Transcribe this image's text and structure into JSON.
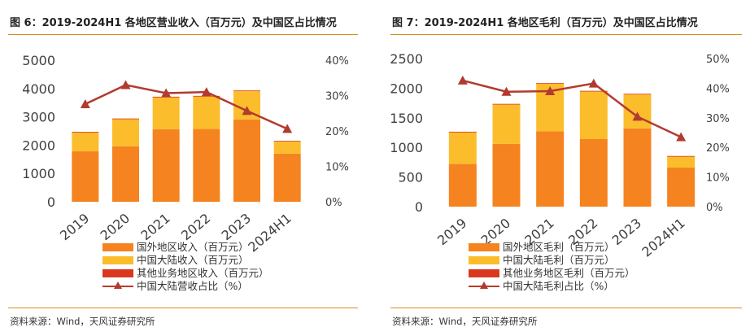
{
  "colors": {
    "overseas": "#f5831f",
    "mainland": "#fbbd2c",
    "other": "#d9381e",
    "ratio_line": "#b23a2e",
    "accent_rule": "#e08a1e"
  },
  "charts": [
    {
      "title": "图 6：2019-2024H1 各地区营业收入（百万元）及中国区占比情况",
      "source": "资料来源：Wind，天风证券研究所",
      "legend": [
        "国外地区收入（百万元）",
        "中国大陆收入（百万元）",
        "其他业务地区收入（百万元）",
        "中国大陆营收占比（%）"
      ]
    },
    {
      "title": "图 7：2019-2024H1 各地区毛利（百万元）及中国区占比情况",
      "source": "资料来源：Wind，天风证券研究所",
      "legend": [
        "国外地区毛利（百万元）",
        "中国大陆毛利（百万元）",
        "其他业务地区毛利（百万元）",
        "中国大陆毛利占比（%）"
      ]
    }
  ],
  "chart_data": [
    {
      "type": "bar",
      "stacked": true,
      "title": "图 6：2019-2024H1 各地区营业收入（百万元）及中国区占比情况",
      "categories": [
        "2019",
        "2020",
        "2021",
        "2022",
        "2023",
        "2024H1"
      ],
      "series": [
        {
          "name": "国外地区收入（百万元）",
          "values": [
            1780,
            1960,
            2560,
            2570,
            2910,
            1700
          ],
          "axis": "left"
        },
        {
          "name": "中国大陆收入（百万元）",
          "values": [
            680,
            970,
            1140,
            1160,
            1010,
            440
          ],
          "axis": "left"
        },
        {
          "name": "其他业务地区收入（百万元）",
          "values": [
            10,
            10,
            10,
            10,
            10,
            10
          ],
          "axis": "left"
        },
        {
          "name": "中国大陆营收占比（%）",
          "type": "line",
          "values": [
            27.6,
            33.0,
            30.7,
            31.0,
            25.7,
            20.6
          ],
          "axis": "right"
        }
      ],
      "y_left": {
        "ticks": [
          0,
          1000,
          2000,
          3000,
          4000,
          5000
        ],
        "labels": [
          "0",
          "1000",
          "2000",
          "3000",
          "4000",
          "5000"
        ],
        "ylim": [
          0,
          5000
        ]
      },
      "y_right": {
        "ticks": [
          0,
          10,
          20,
          30,
          40
        ],
        "labels": [
          "0%",
          "10%",
          "20%",
          "30%",
          "40%"
        ],
        "ylim": [
          0,
          40
        ]
      },
      "grid": false,
      "legend_position": "bottom"
    },
    {
      "type": "bar",
      "stacked": true,
      "title": "图 7：2019-2024H1 各地区毛利（百万元）及中国区占比情况",
      "categories": [
        "2019",
        "2020",
        "2021",
        "2022",
        "2023",
        "2024H1"
      ],
      "series": [
        {
          "name": "国外地区毛利（百万元）",
          "values": [
            720,
            1060,
            1270,
            1140,
            1320,
            660
          ],
          "axis": "left"
        },
        {
          "name": "中国大陆毛利（百万元）",
          "values": [
            540,
            670,
            810,
            810,
            580,
            190
          ],
          "axis": "left"
        },
        {
          "name": "其他业务地区毛利（百万元）",
          "values": [
            5,
            5,
            5,
            5,
            5,
            5
          ],
          "axis": "left"
        },
        {
          "name": "中国大陆毛利占比（%）",
          "type": "line",
          "values": [
            42.6,
            38.8,
            39.0,
            41.6,
            30.4,
            23.5
          ],
          "axis": "right"
        }
      ],
      "y_left": {
        "ticks": [
          0,
          500,
          1000,
          1500,
          2000,
          2500
        ],
        "labels": [
          "0",
          "500",
          "1000",
          "1500",
          "2000",
          "2500"
        ],
        "ylim": [
          0,
          2500
        ]
      },
      "y_right": {
        "ticks": [
          0,
          10,
          20,
          30,
          40,
          50
        ],
        "labels": [
          "0%",
          "10%",
          "20%",
          "30%",
          "40%",
          "50%"
        ],
        "ylim": [
          0,
          50
        ]
      },
      "grid": false,
      "legend_position": "bottom"
    }
  ]
}
